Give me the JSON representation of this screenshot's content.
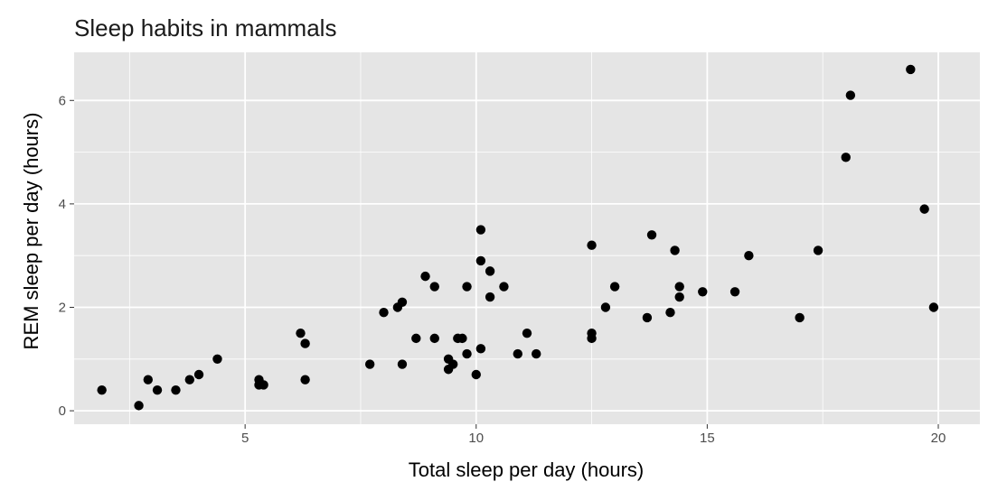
{
  "chart_data": {
    "type": "scatter",
    "title": "Sleep habits in mammals",
    "xlabel": "Total sleep per day (hours)",
    "ylabel": "REM sleep per day (hours)",
    "xlim": [
      1.3,
      20.9
    ],
    "ylim": [
      -0.26,
      6.93
    ],
    "xticks": [
      5,
      10,
      15,
      20
    ],
    "yticks": [
      0,
      2,
      4,
      6
    ],
    "grid": true,
    "colors": {
      "panel": "#e5e5e5",
      "grid": "#ffffff",
      "point": "#000000",
      "tick": "#333333"
    },
    "points": [
      [
        1.9,
        0.4
      ],
      [
        2.7,
        0.1
      ],
      [
        2.9,
        0.6
      ],
      [
        3.1,
        0.4
      ],
      [
        3.5,
        0.4
      ],
      [
        3.8,
        0.6
      ],
      [
        4.0,
        0.7
      ],
      [
        4.4,
        1.0
      ],
      [
        5.3,
        0.6
      ],
      [
        5.3,
        0.5
      ],
      [
        5.4,
        0.5
      ],
      [
        6.2,
        1.5
      ],
      [
        6.3,
        1.3
      ],
      [
        6.3,
        0.6
      ],
      [
        7.7,
        0.9
      ],
      [
        8.0,
        1.9
      ],
      [
        8.3,
        2.0
      ],
      [
        8.4,
        2.1
      ],
      [
        8.4,
        0.9
      ],
      [
        8.7,
        1.4
      ],
      [
        8.9,
        2.6
      ],
      [
        9.1,
        2.4
      ],
      [
        9.1,
        1.4
      ],
      [
        9.4,
        1.0
      ],
      [
        9.4,
        0.8
      ],
      [
        9.5,
        0.9
      ],
      [
        9.6,
        1.4
      ],
      [
        9.7,
        1.4
      ],
      [
        9.8,
        2.4
      ],
      [
        9.8,
        1.1
      ],
      [
        10.0,
        0.7
      ],
      [
        10.1,
        3.5
      ],
      [
        10.1,
        2.9
      ],
      [
        10.1,
        1.2
      ],
      [
        10.3,
        2.7
      ],
      [
        10.3,
        2.2
      ],
      [
        10.6,
        2.4
      ],
      [
        10.9,
        1.1
      ],
      [
        11.1,
        1.5
      ],
      [
        11.3,
        1.1
      ],
      [
        12.5,
        3.2
      ],
      [
        12.5,
        1.5
      ],
      [
        12.5,
        1.4
      ],
      [
        12.8,
        2.0
      ],
      [
        13.0,
        2.4
      ],
      [
        13.7,
        1.8
      ],
      [
        13.8,
        3.4
      ],
      [
        14.2,
        1.9
      ],
      [
        14.3,
        3.1
      ],
      [
        14.4,
        2.4
      ],
      [
        14.4,
        2.2
      ],
      [
        14.9,
        2.3
      ],
      [
        15.6,
        2.3
      ],
      [
        15.9,
        3.0
      ],
      [
        17.0,
        1.8
      ],
      [
        17.4,
        3.1
      ],
      [
        18.0,
        4.9
      ],
      [
        18.1,
        6.1
      ],
      [
        19.4,
        6.6
      ],
      [
        19.7,
        3.9
      ],
      [
        19.9,
        2.0
      ]
    ]
  }
}
